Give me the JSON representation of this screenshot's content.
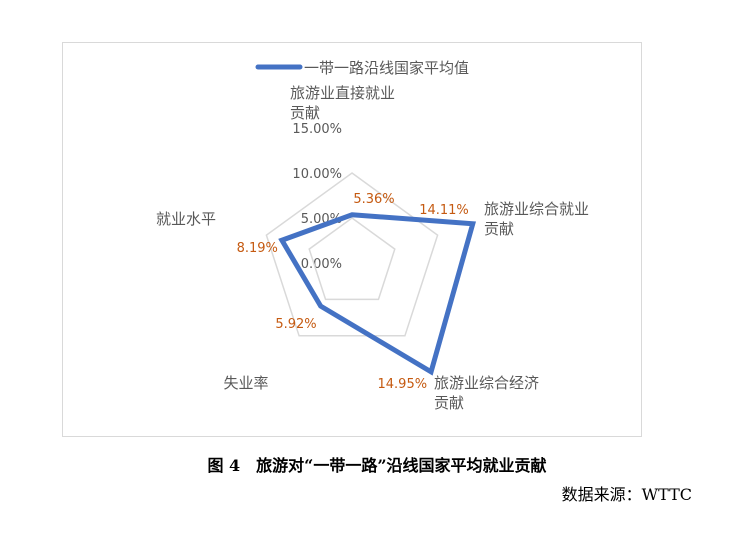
{
  "chart_data": {
    "type": "radar",
    "categories": [
      "旅游业直接就业\n贡献",
      "旅游业综合就业\n贡献",
      "旅游业综合经济\n贡献",
      "失业率",
      "就业水平"
    ],
    "series": [
      {
        "name": "一带一路沿线国家平均值",
        "values": [
          5.36,
          14.11,
          14.95,
          5.92,
          8.19
        ],
        "labels": [
          "5.36%",
          "14.11%",
          "14.95%",
          "5.92%",
          "8.19%"
        ],
        "color": "#4472c4"
      }
    ],
    "ticks": [
      "0.00%",
      "5.00%",
      "10.00%",
      "15.00%"
    ],
    "tick_values": [
      0,
      5,
      10,
      15
    ],
    "rlim": [
      0,
      15
    ],
    "legend": "top",
    "grid": true,
    "label_color": "#c55a11",
    "grid_color": "#d9d9d9"
  },
  "caption": "图 4　旅游对“一带一路”沿线国家平均就业贡献",
  "source": "数据来源：WTTC"
}
